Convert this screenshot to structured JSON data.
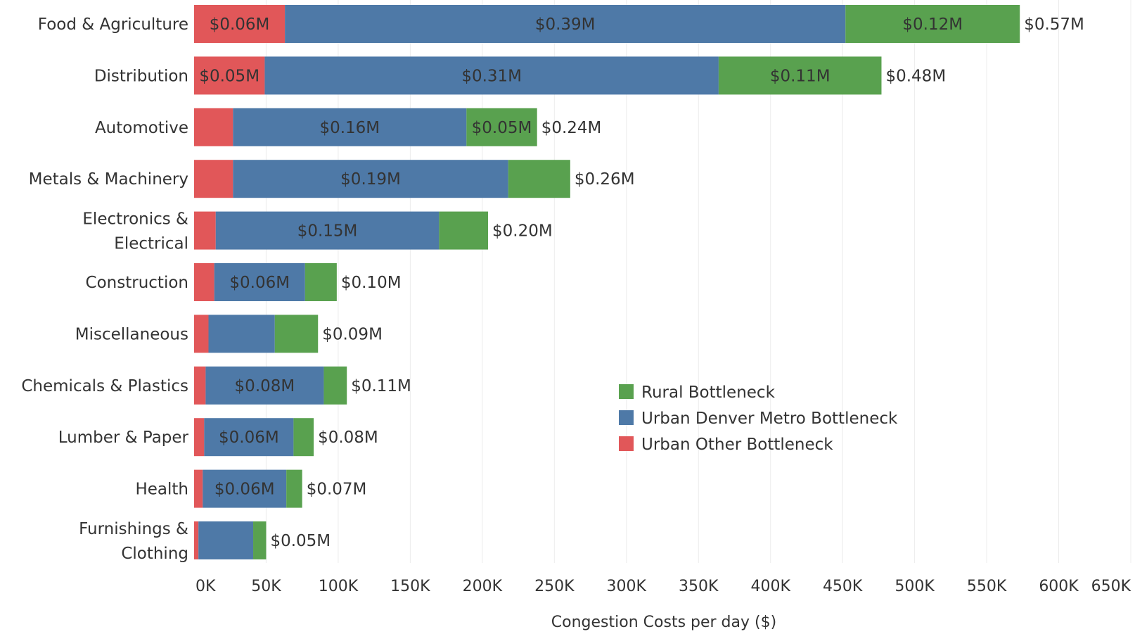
{
  "chart_data": {
    "type": "bar",
    "orientation": "horizontal",
    "stacked": true,
    "xlabel": "Congestion Costs per day ($)",
    "xlim": [
      0,
      650000
    ],
    "xticks": [
      0,
      50000,
      100000,
      150000,
      200000,
      250000,
      300000,
      350000,
      400000,
      450000,
      500000,
      550000,
      600000,
      650000
    ],
    "xtick_labels": [
      "0K",
      "50K",
      "100K",
      "150K",
      "200K",
      "250K",
      "300K",
      "350K",
      "400K",
      "450K",
      "500K",
      "550K",
      "600K",
      "650K"
    ],
    "grid": "vertical",
    "legend_position": "right-middle",
    "categories": [
      [
        "Food & Agriculture"
      ],
      [
        "Distribution"
      ],
      [
        "Automotive"
      ],
      [
        "Metals & Machinery"
      ],
      [
        "Electronics &",
        "Electrical"
      ],
      [
        "Construction"
      ],
      [
        "Miscellaneous"
      ],
      [
        "Chemicals & Plastics"
      ],
      [
        "Lumber & Paper"
      ],
      [
        "Health"
      ],
      [
        "Furnishings &",
        "Clothing"
      ]
    ],
    "series": [
      {
        "name": "Urban Other Bottleneck",
        "color": "#e15759",
        "values": [
          63000,
          49000,
          27000,
          27000,
          15000,
          14000,
          10000,
          8000,
          7000,
          6000,
          3000
        ],
        "labels": [
          "$0.06M",
          "$0.05M",
          "",
          "",
          "",
          "",
          "",
          "",
          "",
          "",
          ""
        ]
      },
      {
        "name": "Urban Denver Metro Bottleneck",
        "color": "#4e79a7",
        "values": [
          389000,
          315000,
          162000,
          191000,
          155000,
          63000,
          46000,
          82000,
          62000,
          58000,
          38000
        ],
        "labels": [
          "$0.39M",
          "$0.31M",
          "$0.16M",
          "$0.19M",
          "$0.15M",
          "$0.06M",
          "",
          "$0.08M",
          "$0.06M",
          "$0.06M",
          ""
        ]
      },
      {
        "name": "Rural Bottleneck",
        "color": "#59a14f",
        "values": [
          121000,
          113000,
          49000,
          43000,
          34000,
          22000,
          30000,
          16000,
          14000,
          11000,
          9000
        ],
        "labels": [
          "$0.12M",
          "$0.11M",
          "$0.05M",
          "",
          "",
          "",
          "",
          "",
          "",
          "",
          ""
        ]
      }
    ],
    "totals": [
      "$0.57M",
      "$0.48M",
      "$0.24M",
      "$0.26M",
      "$0.20M",
      "$0.10M",
      "$0.09M",
      "$0.11M",
      "$0.08M",
      "$0.07M",
      "$0.05M"
    ],
    "legend": [
      {
        "name": "Rural Bottleneck",
        "color": "#59a14f"
      },
      {
        "name": "Urban Denver Metro Bottleneck",
        "color": "#4e79a7"
      },
      {
        "name": "Urban Other Bottleneck",
        "color": "#e15759"
      }
    ]
  }
}
